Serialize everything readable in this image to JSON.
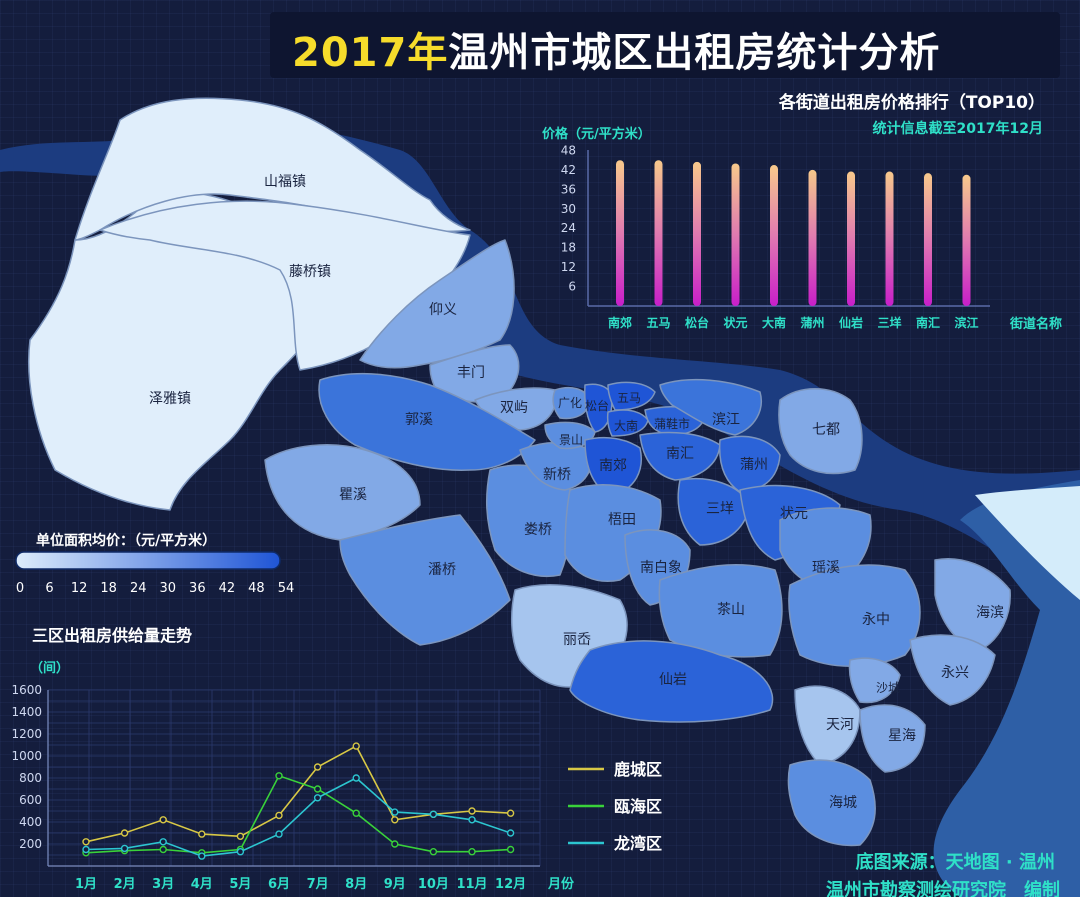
{
  "title": {
    "year": "2017年",
    "rest": "温州市城区出租房统计分析"
  },
  "map": {
    "districts": [
      {
        "name": "山福镇",
        "price": 6
      },
      {
        "name": "藤桥镇",
        "price": 6
      },
      {
        "name": "泽雅镇",
        "price": 6
      },
      {
        "name": "仰义",
        "price": 24
      },
      {
        "name": "丰门",
        "price": 24
      },
      {
        "name": "双屿",
        "price": 24
      },
      {
        "name": "郭溪",
        "price": 36
      },
      {
        "name": "瞿溪",
        "price": 24
      },
      {
        "name": "潘桥",
        "price": 30
      },
      {
        "name": "娄桥",
        "price": 30
      },
      {
        "name": "梧田",
        "price": 30
      },
      {
        "name": "南白象",
        "price": 30
      },
      {
        "name": "茶山",
        "price": 30
      },
      {
        "name": "丽岙",
        "price": 12
      },
      {
        "name": "仙岩",
        "price": 42
      },
      {
        "name": "新桥",
        "price": 30
      },
      {
        "name": "景山",
        "price": 30
      },
      {
        "name": "广化",
        "price": 30
      },
      {
        "name": "松台",
        "price": 48
      },
      {
        "name": "五马",
        "price": 48
      },
      {
        "name": "大南",
        "price": 48
      },
      {
        "name": "蒲鞋市",
        "price": 42
      },
      {
        "name": "南郊",
        "price": 48
      },
      {
        "name": "南汇",
        "price": 42
      },
      {
        "name": "滨江",
        "price": 36
      },
      {
        "name": "蒲州",
        "price": 42
      },
      {
        "name": "三垟",
        "price": 42
      },
      {
        "name": "状元",
        "price": 42
      },
      {
        "name": "七都",
        "price": 24
      },
      {
        "name": "瑶溪",
        "price": 30
      },
      {
        "name": "永中",
        "price": 30
      },
      {
        "name": "海滨",
        "price": 24
      },
      {
        "name": "永兴",
        "price": 24
      },
      {
        "name": "沙城",
        "price": 24
      },
      {
        "name": "天河",
        "price": 18
      },
      {
        "name": "星海",
        "price": 24
      },
      {
        "name": "海城",
        "price": 30
      }
    ],
    "legend": {
      "title": "单位面积均价：（元/平方米）",
      "ticks": [
        "0",
        "6",
        "12",
        "18",
        "24",
        "30",
        "36",
        "42",
        "48",
        "54"
      ],
      "color_low": "#dcecfb",
      "color_high": "#1f55d6"
    }
  },
  "colors": {
    "sea": "#2e5fa6",
    "river": "#1c3c80",
    "background": "#141d3d",
    "title_year": "#f6dc2b",
    "accent_cyan": "#2fe0c8"
  },
  "chart_data": [
    {
      "type": "bar",
      "title": "各街道出租房价格排行（TOP10）",
      "subtitle": "统计信息截至2017年12月",
      "ylabel": "价格（元/平方米）",
      "xlabel": "街道名称",
      "categories": [
        "南郊",
        "五马",
        "松台",
        "状元",
        "大南",
        "蒲州",
        "仙岩",
        "三垟",
        "南汇",
        "滨江"
      ],
      "values": [
        45,
        45,
        44.5,
        44,
        43.5,
        42,
        41.5,
        41.5,
        41,
        40.5
      ],
      "yticks": [
        6,
        12,
        18,
        24,
        30,
        36,
        42,
        48
      ],
      "ylim": [
        0,
        50
      ],
      "grid": false
    },
    {
      "type": "line",
      "title": "三区出租房供给量走势",
      "ylabel": "（间）",
      "xlabel": "月份",
      "categories": [
        "1月",
        "2月",
        "3月",
        "4月",
        "5月",
        "6月",
        "7月",
        "8月",
        "9月",
        "10月",
        "11月",
        "12月"
      ],
      "yticks": [
        200,
        400,
        600,
        800,
        1000,
        1200,
        1400,
        1600
      ],
      "ylim": [
        0,
        1600
      ],
      "grid": true,
      "legend_position": "right",
      "series": [
        {
          "name": "鹿城区",
          "color": "#d8c845",
          "values": [
            220,
            300,
            420,
            290,
            270,
            460,
            900,
            1090,
            420,
            470,
            500,
            480
          ]
        },
        {
          "name": "瓯海区",
          "color": "#39d23a",
          "values": [
            120,
            140,
            150,
            120,
            150,
            820,
            700,
            480,
            200,
            130,
            130,
            150
          ]
        },
        {
          "name": "龙湾区",
          "color": "#2cc6d0",
          "values": [
            150,
            160,
            220,
            90,
            130,
            290,
            620,
            800,
            490,
            470,
            420,
            300
          ]
        }
      ]
    }
  ],
  "credits": {
    "line1": "底图来源：天地图 · 温州",
    "line2": "温州市勘察测绘研究院　编制"
  }
}
